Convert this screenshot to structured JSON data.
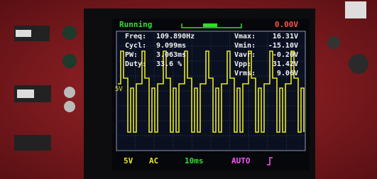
{
  "status_bar": {
    "state": "Running",
    "trigger_level": "0.00V"
  },
  "measurements_left": [
    {
      "label": "Freq:",
      "value": "109.890Hz"
    },
    {
      "label": "Cycl:",
      "value": "9.099ms"
    },
    {
      "label": "PW:",
      "value": "3.063ms"
    },
    {
      "label": "Duty:",
      "value": "33.6 %"
    }
  ],
  "measurements_right": [
    {
      "label": "Vmax:",
      "value": "16.31V"
    },
    {
      "label": "Vmin:",
      "value": "-15.10V"
    },
    {
      "label": "Vavr:",
      "value": "-0.20V"
    },
    {
      "label": "Vpp:",
      "value": "31.42V"
    },
    {
      "label": "Vrms:",
      "value": "9.06V"
    }
  ],
  "footer": {
    "volts_div": "5V",
    "coupling": "AC",
    "time_div": "10ms",
    "trigger_mode": "AUTO"
  }
}
